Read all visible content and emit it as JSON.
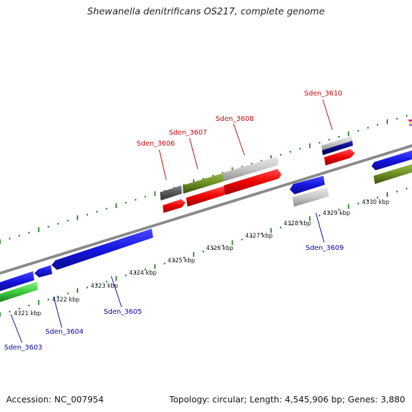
{
  "title": "Shewanella denitrificans OS217, complete genome",
  "footer": {
    "accession": "Accession: NC_007954",
    "stats": "Topology: circular; Length: 4,545,906 bp; Genes: 3,880"
  },
  "colors": {
    "backbone": "#8a8a8a",
    "tick": "#2e8b2e",
    "label_top": "#cc0000",
    "label_bottom": "#0000aa",
    "blue": "#1515e0",
    "red": "#ee0000",
    "olive": "#6b8e23",
    "light_grey": "#c8c8c8",
    "dark_grey": "#555555",
    "navy": "#000080",
    "green": "#3ccc3c"
  },
  "scale": {
    "tick_labels": [
      "4321 kbp",
      "4322 kbp",
      "4323 kbp",
      "4324 kbp",
      "4325 kbp",
      "4326 kbp",
      "4327 kbp",
      "4328 kbp",
      "4329 kbp",
      "4330 kbp"
    ]
  },
  "genes": {
    "top_labels": [
      "Sden_3606",
      "Sden_3607",
      "Sden_3608",
      "Sden_3610"
    ],
    "bottom_labels": [
      "Sden_3603",
      "Sden_3604",
      "Sden_3605",
      "Sden_3609"
    ]
  }
}
